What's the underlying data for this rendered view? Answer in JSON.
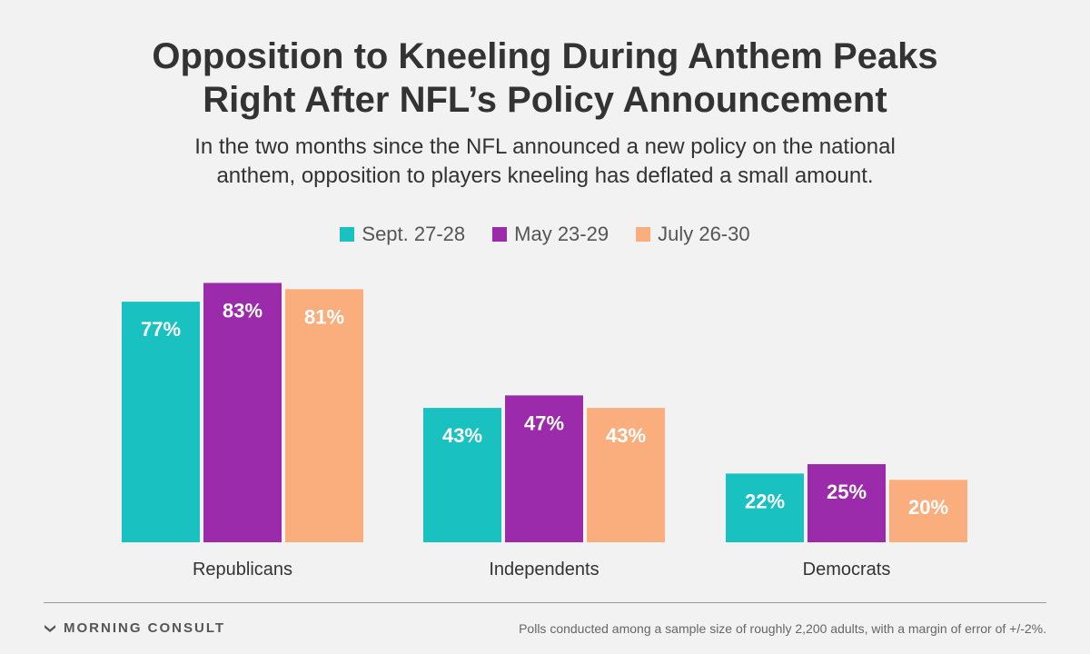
{
  "title_lines": [
    "Opposition to Kneeling During Anthem Peaks",
    "Right After NFL’s Policy Announcement"
  ],
  "subtitle_lines": [
    "In the two months since the NFL announced a new policy on the national",
    "anthem, opposition to players kneeling has deflated a small amount."
  ],
  "legend": [
    {
      "label": "Sept. 27-28",
      "color": "#19c1c1"
    },
    {
      "label": "May 23-29",
      "color": "#9b2bab"
    },
    {
      "label": "July 26-30",
      "color": "#fbae7d"
    }
  ],
  "chart_data": {
    "type": "bar",
    "categories": [
      "Republicans",
      "Independents",
      "Democrats"
    ],
    "series": [
      {
        "name": "Sept. 27-28",
        "values": [
          77,
          43,
          22
        ],
        "color": "#19c1c1"
      },
      {
        "name": "May 23-29",
        "values": [
          83,
          47,
          25
        ],
        "color": "#9b2bab"
      },
      {
        "name": "July 26-30",
        "values": [
          81,
          43,
          20
        ],
        "color": "#fbae7d"
      }
    ],
    "value_suffix": "%",
    "ylim": [
      0,
      100
    ],
    "title": "Opposition to Kneeling During Anthem Peaks Right After NFL’s Policy Announcement",
    "xlabel": "",
    "ylabel": ""
  },
  "footer": {
    "brand": "MORNING CONSULT",
    "note": "Polls conducted among a sample size of roughly 2,200 adults, with a margin of error of +/-2%."
  }
}
